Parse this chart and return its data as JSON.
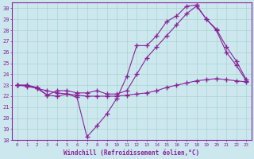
{
  "xlabel": "Windchill (Refroidissement éolien,°C)",
  "background_color": "#cce8ee",
  "grid_color": "#a8d5cc",
  "line_color": "#882299",
  "xlim": [
    -0.5,
    23.5
  ],
  "ylim": [
    18,
    30.5
  ],
  "xticks": [
    0,
    1,
    2,
    3,
    4,
    5,
    6,
    7,
    8,
    9,
    10,
    11,
    12,
    13,
    14,
    15,
    16,
    17,
    18,
    19,
    20,
    21,
    22,
    23
  ],
  "yticks": [
    18,
    19,
    20,
    21,
    22,
    23,
    24,
    25,
    26,
    27,
    28,
    29,
    30
  ],
  "line1_x": [
    0,
    1,
    2,
    3,
    4,
    5,
    6,
    7,
    8,
    9,
    10,
    11,
    12,
    13,
    14,
    15,
    16,
    17,
    18,
    19,
    20,
    21,
    22,
    23
  ],
  "line1_y": [
    23.0,
    23.0,
    22.7,
    22.1,
    22.0,
    22.2,
    21.9,
    18.3,
    19.3,
    20.4,
    21.8,
    23.8,
    26.6,
    26.6,
    27.5,
    28.8,
    29.3,
    30.2,
    30.3,
    29.0,
    28.1,
    26.5,
    25.2,
    23.5
  ],
  "line2_x": [
    0,
    1,
    2,
    3,
    4,
    5,
    6,
    7,
    8,
    9,
    10,
    11,
    12,
    13,
    14,
    15,
    16,
    17,
    18,
    19,
    20,
    21,
    22,
    23
  ],
  "line2_y": [
    23.0,
    22.9,
    22.7,
    22.5,
    22.3,
    22.2,
    22.1,
    22.0,
    22.0,
    22.0,
    22.0,
    22.1,
    22.2,
    22.3,
    22.5,
    22.8,
    23.0,
    23.2,
    23.4,
    23.5,
    23.6,
    23.5,
    23.4,
    23.3
  ],
  "line3_x": [
    0,
    1,
    2,
    3,
    4,
    5,
    6,
    7,
    8,
    9,
    10,
    11,
    12,
    13,
    14,
    15,
    16,
    17,
    18,
    19,
    20,
    21,
    22,
    23
  ],
  "line3_y": [
    23.0,
    23.0,
    22.8,
    22.1,
    22.5,
    22.5,
    22.3,
    22.3,
    22.5,
    22.2,
    22.2,
    22.5,
    24.0,
    25.5,
    26.5,
    27.5,
    28.5,
    29.5,
    30.2,
    29.0,
    28.0,
    26.0,
    24.8,
    23.4
  ]
}
